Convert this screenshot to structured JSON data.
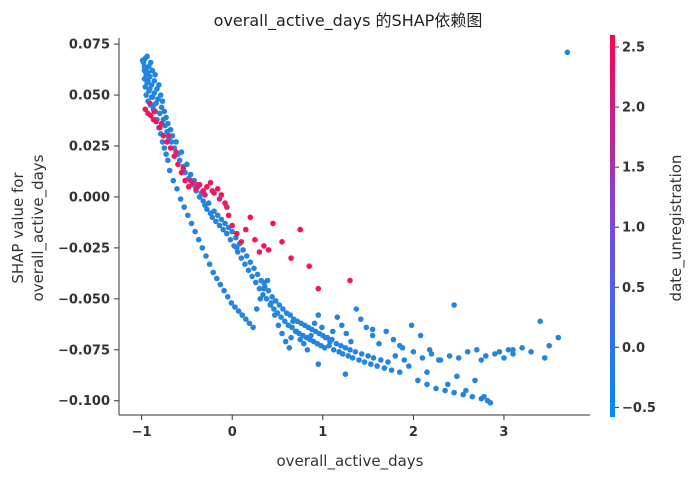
{
  "chart_data": {
    "type": "scatter",
    "title": "overall_active_days 的SHAP依赖图",
    "xlabel": "overall_active_days",
    "ylabel_lines": [
      "SHAP value for",
      "overall_active_days"
    ],
    "xlim": [
      -1.25,
      3.95
    ],
    "ylim": [
      -0.107,
      0.078
    ],
    "xticks": [
      -1,
      0,
      1,
      2,
      3
    ],
    "yticks": [
      -0.1,
      -0.075,
      -0.05,
      -0.025,
      0.0,
      0.025,
      0.05,
      0.075
    ],
    "ytick_labels": [
      "−0.100",
      "−0.075",
      "−0.050",
      "−0.025",
      "0.000",
      "0.025",
      "0.050",
      "0.075"
    ],
    "xtick_labels": [
      "−1",
      "0",
      "1",
      "2",
      "3"
    ],
    "grid": false,
    "colorbar": {
      "label": "date_unregistration",
      "range": [
        -0.58,
        2.6
      ],
      "ticks": [
        -0.5,
        0.0,
        0.5,
        1.0,
        1.5,
        2.0,
        2.5
      ],
      "tick_labels": [
        "−0.5",
        "0.0",
        "0.5",
        "1.0",
        "1.5",
        "2.0",
        "2.5"
      ],
      "low_color": "#008afb",
      "mid_color": "#7a4bd8",
      "high_color": "#ff0052"
    },
    "point_color_low": "#1e88e5",
    "point_color_high": "#ff0d57",
    "series": [
      {
        "color_value": -0.5,
        "x": [
          -0.98,
          -0.97,
          -0.97,
          -0.96,
          -0.96,
          -0.95,
          -0.95,
          -0.94,
          -0.94,
          -0.93,
          -0.93,
          -0.92,
          -0.92,
          -0.91,
          -0.9,
          -0.9,
          -0.89,
          -0.88,
          -0.88,
          -0.87,
          -0.86,
          -0.86,
          -0.85,
          -0.84,
          -0.83,
          -0.82,
          -0.81,
          -0.8,
          -0.79,
          -0.78,
          -0.77,
          -0.76,
          -0.75,
          -0.74,
          -0.73,
          -0.72,
          -0.71,
          -0.7,
          -0.68,
          -0.67,
          -0.66,
          -0.64,
          -0.62,
          -0.6,
          -0.58,
          -0.56,
          -0.54,
          -0.52,
          -0.5,
          -0.48,
          -0.46,
          -0.44,
          -0.42,
          -0.4,
          -0.38,
          -0.36,
          -0.34,
          -0.32,
          -0.3,
          -0.28,
          -0.26,
          -0.24,
          -0.22,
          -0.2,
          -0.18,
          -0.16,
          -0.14,
          -0.12,
          -0.1,
          -0.08,
          -0.06,
          -0.04,
          -0.02,
          0.0,
          0.02,
          0.04,
          0.06,
          0.08,
          0.1,
          0.12,
          0.14,
          0.16,
          0.18,
          0.2,
          0.22,
          0.24,
          0.26,
          0.28,
          0.3,
          0.32,
          0.34,
          0.36,
          0.38,
          0.4,
          0.42,
          0.44,
          0.46,
          0.48,
          0.5,
          0.52,
          0.54,
          0.56,
          0.58,
          0.6,
          0.62,
          0.64,
          0.66,
          0.68,
          0.7,
          0.72,
          0.74,
          0.76,
          0.78,
          0.8,
          0.82,
          0.84,
          0.86,
          0.88,
          0.9,
          0.92,
          0.94,
          0.96,
          0.98,
          1.0,
          1.02,
          1.05,
          1.08,
          1.1,
          1.12,
          1.15,
          1.18,
          1.2,
          1.22,
          1.25,
          1.28,
          1.3,
          1.33,
          1.36,
          1.4,
          1.43,
          1.46,
          1.5,
          1.53,
          1.56,
          1.6,
          1.64,
          1.68,
          1.72,
          1.76,
          1.8,
          1.85,
          1.9,
          1.95,
          2.0,
          2.05,
          2.1,
          2.15,
          2.2,
          2.25,
          2.3,
          2.35,
          2.4,
          2.45,
          2.5,
          2.55,
          2.6,
          2.65,
          2.7,
          2.75,
          2.8,
          2.85,
          2.9,
          2.95,
          3.0,
          3.05,
          3.1,
          3.2,
          3.3,
          3.4,
          3.5,
          3.6,
          3.7,
          -0.99,
          -0.97,
          -0.95,
          -0.93,
          -0.91,
          -0.89,
          -0.87,
          -0.85,
          -0.83,
          -0.81,
          -0.79,
          -0.77,
          -0.75,
          -0.73,
          -0.71,
          -0.69,
          -0.65,
          -0.61,
          -0.57,
          -0.53,
          -0.49,
          -0.45,
          -0.41,
          -0.37,
          -0.33,
          -0.29,
          -0.25,
          -0.21,
          -0.17,
          -0.13,
          -0.09,
          -0.05,
          -0.01,
          0.03,
          0.07,
          0.11,
          0.15,
          0.19,
          0.23,
          0.27,
          0.31,
          0.35,
          0.39,
          0.43,
          0.47,
          0.51,
          0.55,
          0.59,
          0.63,
          0.67,
          0.71,
          0.75,
          0.79,
          0.83,
          0.87,
          0.91,
          0.95,
          0.99,
          1.03,
          1.07,
          1.11,
          1.16,
          1.21,
          1.26,
          1.31,
          1.37,
          1.42,
          1.48,
          1.55,
          1.62,
          1.7,
          1.78,
          1.88,
          1.98,
          2.08,
          2.18,
          2.28,
          2.38,
          2.48,
          2.58,
          2.68,
          2.78,
          2.82,
          0.05,
          0.35,
          0.65,
          0.95,
          1.25,
          1.55,
          1.85,
          2.15,
          2.45,
          2.75,
          3.1,
          3.45
        ],
        "y": [
          0.066,
          0.062,
          0.058,
          0.068,
          0.054,
          0.063,
          0.05,
          0.069,
          0.056,
          0.061,
          0.047,
          0.064,
          0.052,
          0.059,
          0.045,
          0.066,
          0.055,
          0.049,
          0.062,
          0.043,
          0.057,
          0.051,
          0.06,
          0.046,
          0.053,
          0.048,
          0.055,
          0.041,
          0.05,
          0.044,
          0.047,
          0.038,
          0.042,
          0.035,
          0.039,
          0.032,
          0.036,
          0.029,
          0.033,
          0.027,
          0.03,
          0.024,
          0.027,
          0.021,
          0.018,
          0.022,
          0.015,
          0.012,
          0.016,
          0.009,
          0.011,
          0.006,
          0.008,
          0.003,
          0.005,
          0.0,
          0.002,
          -0.002,
          -0.004,
          -0.006,
          -0.003,
          -0.008,
          -0.01,
          -0.007,
          -0.012,
          -0.009,
          -0.014,
          -0.011,
          -0.016,
          -0.013,
          -0.018,
          -0.015,
          -0.021,
          -0.017,
          -0.024,
          -0.02,
          -0.027,
          -0.023,
          -0.03,
          -0.026,
          -0.033,
          -0.029,
          -0.036,
          -0.032,
          -0.039,
          -0.035,
          -0.042,
          -0.038,
          -0.045,
          -0.041,
          -0.048,
          -0.044,
          -0.05,
          -0.046,
          -0.053,
          -0.049,
          -0.055,
          -0.051,
          -0.057,
          -0.053,
          -0.059,
          -0.055,
          -0.061,
          -0.057,
          -0.063,
          -0.058,
          -0.064,
          -0.06,
          -0.066,
          -0.061,
          -0.067,
          -0.062,
          -0.068,
          -0.063,
          -0.069,
          -0.064,
          -0.07,
          -0.065,
          -0.071,
          -0.066,
          -0.072,
          -0.067,
          -0.073,
          -0.068,
          -0.074,
          -0.069,
          -0.071,
          -0.07,
          -0.075,
          -0.072,
          -0.076,
          -0.073,
          -0.077,
          -0.074,
          -0.078,
          -0.075,
          -0.079,
          -0.076,
          -0.08,
          -0.077,
          -0.081,
          -0.078,
          -0.082,
          -0.079,
          -0.083,
          -0.08,
          -0.084,
          -0.081,
          -0.085,
          -0.078,
          -0.086,
          -0.08,
          -0.083,
          -0.076,
          -0.09,
          -0.079,
          -0.092,
          -0.077,
          -0.094,
          -0.08,
          -0.095,
          -0.078,
          -0.096,
          -0.079,
          -0.097,
          -0.076,
          -0.098,
          -0.075,
          -0.099,
          -0.078,
          -0.101,
          -0.077,
          -0.076,
          -0.079,
          -0.075,
          -0.077,
          -0.074,
          -0.076,
          -0.061,
          -0.073,
          -0.069,
          0.071,
          0.067,
          0.064,
          0.06,
          0.057,
          0.053,
          0.049,
          0.045,
          0.042,
          0.038,
          0.034,
          0.031,
          0.027,
          0.024,
          0.021,
          0.018,
          0.013,
          0.008,
          0.004,
          -0.001,
          -0.005,
          -0.009,
          -0.013,
          -0.017,
          -0.021,
          -0.025,
          -0.029,
          -0.033,
          -0.037,
          -0.04,
          -0.043,
          -0.046,
          -0.049,
          -0.052,
          -0.054,
          -0.056,
          -0.058,
          -0.06,
          -0.062,
          -0.064,
          -0.055,
          -0.05,
          -0.045,
          -0.041,
          -0.052,
          -0.058,
          -0.063,
          -0.067,
          -0.071,
          -0.074,
          -0.061,
          -0.066,
          -0.07,
          -0.072,
          -0.075,
          -0.068,
          -0.062,
          -0.058,
          -0.064,
          -0.069,
          -0.073,
          -0.066,
          -0.059,
          -0.063,
          -0.067,
          -0.071,
          -0.055,
          -0.06,
          -0.064,
          -0.068,
          -0.072,
          -0.066,
          -0.07,
          -0.074,
          -0.063,
          -0.068,
          -0.075,
          -0.08,
          -0.092,
          -0.088,
          -0.095,
          -0.09,
          -0.098,
          -0.1,
          -0.025,
          -0.042,
          -0.069,
          -0.082,
          -0.087,
          -0.065,
          -0.073,
          -0.086,
          -0.053,
          -0.08,
          -0.075,
          -0.079
        ]
      },
      {
        "color_value": 2.5,
        "x": [
          -0.96,
          -0.93,
          -0.9,
          -0.87,
          -0.84,
          -0.8,
          -0.76,
          -0.72,
          -0.68,
          -0.64,
          -0.6,
          -0.56,
          -0.52,
          -0.48,
          -0.44,
          -0.4,
          -0.36,
          -0.32,
          -0.28,
          -0.24,
          -0.2,
          -0.16,
          -0.12,
          -0.08,
          -0.04,
          0.0,
          0.05,
          0.1,
          0.15,
          0.2,
          0.25,
          0.3,
          0.35,
          0.4,
          0.45,
          0.55,
          0.65,
          0.75,
          0.85,
          0.95,
          1.3
        ],
        "y": [
          0.043,
          0.041,
          0.04,
          0.038,
          0.037,
          0.034,
          0.03,
          0.027,
          0.024,
          0.02,
          0.016,
          0.012,
          0.008,
          0.005,
          0.007,
          0.004,
          0.006,
          0.003,
          0.005,
          0.007,
          0.002,
          0.004,
          0.001,
          -0.003,
          -0.009,
          -0.014,
          -0.018,
          -0.022,
          -0.016,
          -0.01,
          -0.021,
          -0.027,
          -0.024,
          -0.026,
          -0.013,
          -0.022,
          -0.03,
          -0.016,
          -0.034,
          -0.045,
          -0.041
        ]
      },
      {
        "color_value": 2.0,
        "x": [
          -0.91,
          -0.86,
          -0.78,
          -0.7,
          -0.62,
          -0.54,
          -0.46,
          -0.38,
          -0.3,
          -0.22,
          -0.14,
          -0.06
        ],
        "y": [
          0.046,
          0.042,
          0.036,
          0.03,
          0.022,
          0.014,
          0.008,
          0.006,
          0.001,
          0.003,
          -0.001,
          -0.005
        ]
      }
    ]
  }
}
